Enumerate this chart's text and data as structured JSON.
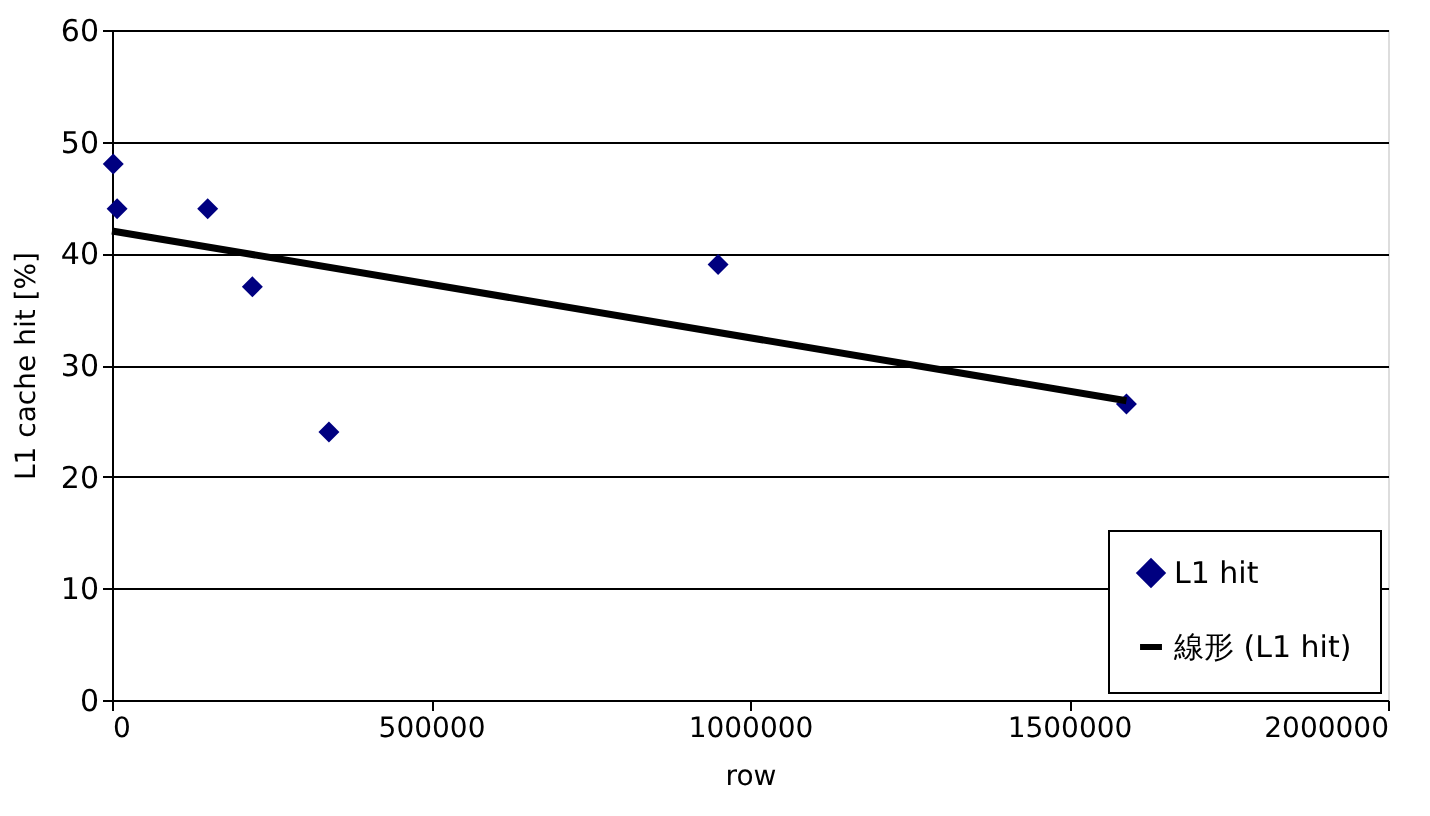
{
  "chart_data": {
    "type": "scatter",
    "xlabel": "row",
    "ylabel": "L1 cache hit  [%]",
    "xlim": [
      0,
      2000000
    ],
    "xticks": [
      0,
      500000,
      1000000,
      1500000,
      2000000
    ],
    "ylim": [
      0,
      60
    ],
    "yticks": [
      0,
      10,
      20,
      30,
      40,
      50,
      60
    ],
    "grid": "y",
    "legend": "bottom right",
    "series": [
      {
        "name": "L1 hit",
        "marker": "diamond",
        "color": "#000080",
        "x": [
          2000,
          8000,
          150000,
          220000,
          340000,
          950000,
          1590000
        ],
        "values": [
          48,
          44,
          44,
          37,
          24,
          39,
          26.5
        ]
      },
      {
        "name": "線形 (L1 hit)",
        "type": "line",
        "color": "#000000",
        "line_style": "solid",
        "x": [
          0,
          1590000
        ],
        "values": [
          42,
          26.8
        ]
      }
    ]
  }
}
